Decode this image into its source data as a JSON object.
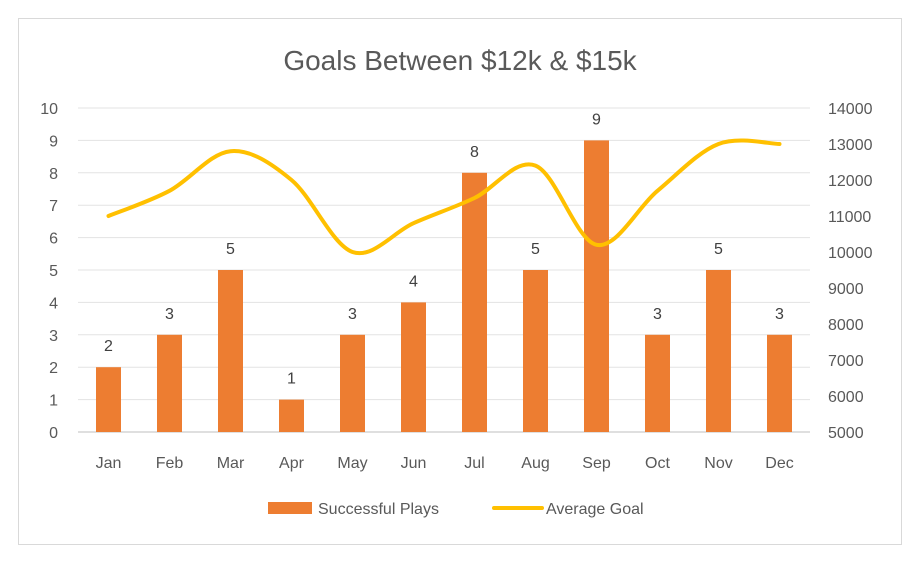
{
  "chart_data": {
    "type": "bar",
    "title": "Goals Between $12k & $15k",
    "categories": [
      "Jan",
      "Feb",
      "Mar",
      "Apr",
      "May",
      "Jun",
      "Jul",
      "Aug",
      "Sep",
      "Oct",
      "Nov",
      "Dec"
    ],
    "series": [
      {
        "name": "Successful Plays",
        "type": "bar",
        "axis": "left",
        "color": "#ED7D31",
        "values": [
          2,
          3,
          5,
          1,
          3,
          4,
          8,
          5,
          9,
          3,
          5,
          3
        ]
      },
      {
        "name": "Average Goal",
        "type": "line",
        "axis": "right",
        "color": "#FFC000",
        "values": [
          11000,
          11700,
          12800,
          12000,
          10000,
          10800,
          11500,
          12400,
          10200,
          11700,
          13000,
          13000
        ]
      }
    ],
    "y_left": {
      "min": 0,
      "max": 10,
      "step": 1
    },
    "y_right": {
      "min": 5000,
      "max": 14000,
      "step": 1000
    },
    "grid": true,
    "legend_position": "bottom"
  }
}
